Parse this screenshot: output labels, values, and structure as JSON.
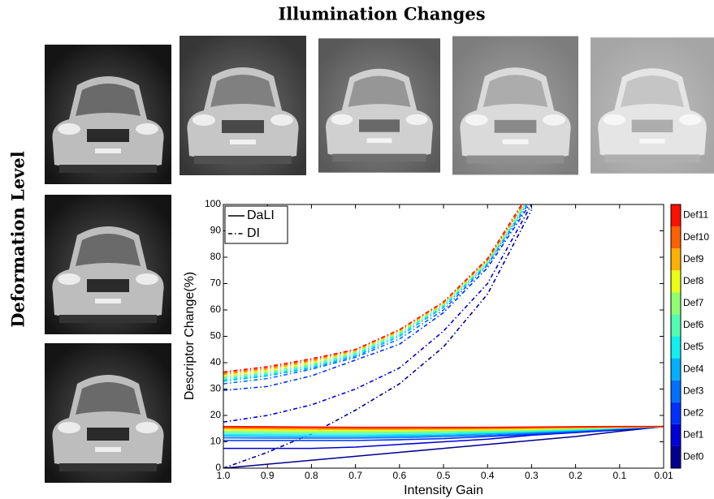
{
  "chart_data": {
    "type": "line",
    "title": "Illumination Changes",
    "side_title": "Deformation Level",
    "x_label": "Intensity Gain",
    "y_label": "Descriptor Change(%)",
    "categories": [
      "1.0",
      "0.9",
      "0.8",
      "0.7",
      "0.6",
      "0.5",
      "0.4",
      "0.3",
      "0.2",
      "0.1",
      "0.01"
    ],
    "ylim": [
      0,
      100
    ],
    "yticks": [
      0,
      10,
      20,
      30,
      40,
      50,
      60,
      70,
      80,
      90,
      100
    ],
    "methods": [
      {
        "name": "DaLI",
        "dash": "none"
      },
      {
        "name": "DI",
        "dash": "5 3 1.5 3"
      }
    ],
    "series": [
      {
        "name": "Def0",
        "color": "#00008f",
        "lines": [
          [
            0,
            1.5,
            3,
            4.5,
            6,
            7.5,
            9,
            10.5,
            12,
            14,
            15.8
          ],
          [
            0,
            6,
            13,
            22,
            32,
            46,
            66,
            98,
            null,
            null,
            null
          ]
        ]
      },
      {
        "name": "Def1",
        "color": "#0000d8",
        "lines": [
          [
            7.5,
            7.5,
            7.5,
            8,
            9,
            10,
            11,
            12.5,
            13.5,
            14.5,
            15.8
          ],
          [
            17.5,
            20,
            24,
            30,
            38,
            52,
            70,
            100,
            null,
            null,
            null
          ]
        ]
      },
      {
        "name": "Def2",
        "color": "#0030ff",
        "lines": [
          [
            10.5,
            10.5,
            10.5,
            10.5,
            10.8,
            11.2,
            12,
            12.8,
            13.8,
            14.8,
            15.8
          ],
          [
            29.5,
            31,
            35,
            41,
            47,
            59,
            76,
            101,
            null,
            null,
            null
          ]
        ]
      },
      {
        "name": "Def3",
        "color": "#0070ff",
        "lines": [
          [
            11.5,
            11.4,
            11.4,
            11.4,
            11.6,
            12,
            12.5,
            13.2,
            14,
            15,
            15.8
          ],
          [
            32,
            34,
            37.5,
            42,
            49,
            60,
            77,
            102,
            null,
            null,
            null
          ]
        ]
      },
      {
        "name": "Def4",
        "color": "#00b0ff",
        "lines": [
          [
            12.2,
            12.1,
            12,
            12,
            12.2,
            12.5,
            13,
            13.6,
            14.3,
            15.1,
            15.8
          ],
          [
            33,
            35,
            38,
            42.5,
            50,
            61,
            77.5,
            103,
            null,
            null,
            null
          ]
        ]
      },
      {
        "name": "Def5",
        "color": "#10f0ef",
        "lines": [
          [
            12.8,
            12.7,
            12.6,
            12.6,
            12.7,
            13,
            13.4,
            13.9,
            14.5,
            15.2,
            15.8
          ],
          [
            33.5,
            35.5,
            38.5,
            43,
            50.5,
            61.5,
            78,
            103,
            null,
            null,
            null
          ]
        ]
      },
      {
        "name": "Def6",
        "color": "#50ffaf",
        "lines": [
          [
            13.4,
            13.3,
            13.2,
            13.2,
            13.3,
            13.5,
            13.8,
            14.2,
            14.8,
            15.3,
            15.8
          ],
          [
            34,
            36,
            39,
            43.5,
            51,
            62,
            78,
            104,
            null,
            null,
            null
          ]
        ]
      },
      {
        "name": "Def7",
        "color": "#90ff6f",
        "lines": [
          [
            14,
            13.9,
            13.8,
            13.8,
            13.8,
            14,
            14.2,
            14.5,
            15,
            15.4,
            15.8
          ],
          [
            34.5,
            36.5,
            39.5,
            44,
            51.5,
            62,
            78.5,
            104,
            null,
            null,
            null
          ]
        ]
      },
      {
        "name": "Def8",
        "color": "#eaff15",
        "lines": [
          [
            14.5,
            14.4,
            14.3,
            14.3,
            14.3,
            14.4,
            14.6,
            14.8,
            15.2,
            15.5,
            15.8
          ],
          [
            35,
            37,
            40,
            44.5,
            52,
            62.5,
            79,
            105,
            null,
            null,
            null
          ]
        ]
      },
      {
        "name": "Def9",
        "color": "#ffb000",
        "lines": [
          [
            15,
            14.9,
            14.8,
            14.7,
            14.7,
            14.8,
            14.9,
            15.1,
            15.4,
            15.6,
            15.8
          ],
          [
            35.5,
            37.5,
            40.5,
            44.5,
            52,
            62.5,
            79,
            105,
            null,
            null,
            null
          ]
        ]
      },
      {
        "name": "Def10",
        "color": "#ff6000",
        "lines": [
          [
            15.4,
            15.3,
            15.2,
            15.1,
            15.1,
            15.1,
            15.2,
            15.4,
            15.5,
            15.7,
            15.8
          ],
          [
            36,
            38,
            41,
            45,
            52.5,
            63,
            79,
            105,
            null,
            null,
            null
          ]
        ]
      },
      {
        "name": "Def11",
        "color": "#ff1000",
        "lines": [
          [
            15.8,
            15.7,
            15.6,
            15.5,
            15.5,
            15.5,
            15.5,
            15.6,
            15.7,
            15.8,
            15.8
          ],
          [
            36.5,
            38.5,
            41.5,
            45,
            52.5,
            63,
            79.5,
            106,
            null,
            null,
            null
          ]
        ]
      }
    ]
  }
}
